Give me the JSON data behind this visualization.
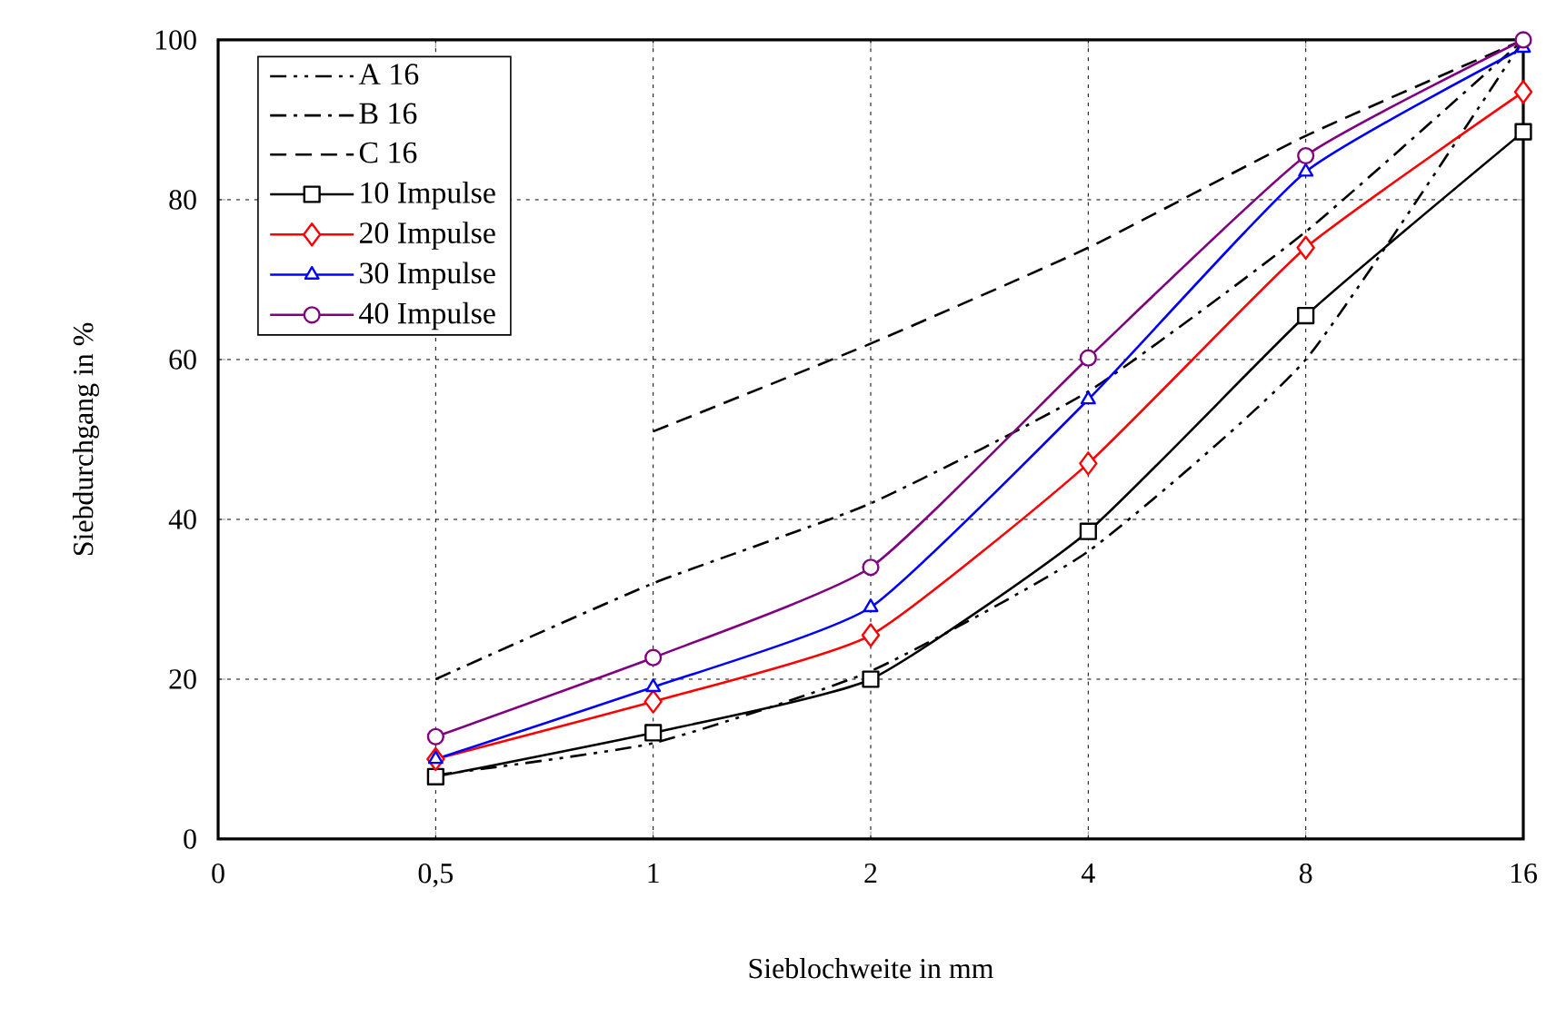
{
  "chart_data": {
    "type": "line",
    "xlabel": "Sieblochweite in mm",
    "ylabel": "Siebdurchgang in %",
    "categories": [
      "0",
      "0,5",
      "1",
      "2",
      "4",
      "8",
      "16"
    ],
    "ylim": [
      0,
      100
    ],
    "yticks": [
      0,
      20,
      40,
      60,
      80,
      100
    ],
    "grid": true,
    "legend": "top left",
    "series": [
      {
        "name": "A 16",
        "color": "#000000",
        "line_style": "dashdotdot",
        "marker": "none",
        "values": [
          null,
          8,
          12,
          21,
          36,
          60,
          100
        ]
      },
      {
        "name": "B 16",
        "color": "#000000",
        "line_style": "dashdot",
        "marker": "none",
        "values": [
          null,
          20,
          32,
          42,
          56,
          76,
          100
        ]
      },
      {
        "name": "C 16",
        "color": "#000000",
        "line_style": "dashed",
        "marker": "none",
        "values": [
          null,
          null,
          51,
          62,
          74,
          88,
          100
        ]
      },
      {
        "name": "10 Impulse",
        "color": "#000000",
        "line_style": "solid",
        "marker": "square",
        "values": [
          null,
          7.8,
          13.3,
          20,
          38.5,
          65.5,
          88.5
        ]
      },
      {
        "name": "20 Impulse",
        "color": "#ff0000",
        "line_style": "solid",
        "marker": "diamond",
        "values": [
          null,
          10,
          17.2,
          25.5,
          47,
          74,
          93.5
        ]
      },
      {
        "name": "30 Impulse",
        "color": "#0000ff",
        "line_style": "solid",
        "marker": "triangle",
        "values": [
          null,
          10,
          19,
          29,
          55,
          83.5,
          99
        ]
      },
      {
        "name": "40 Impulse",
        "color": "#800080",
        "line_style": "solid",
        "marker": "circle",
        "values": [
          null,
          12.8,
          22.7,
          34,
          60.2,
          85.5,
          100
        ]
      }
    ]
  }
}
